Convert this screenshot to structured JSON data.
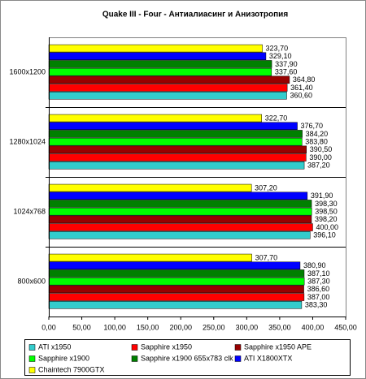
{
  "chart_data": {
    "type": "hbar",
    "title": "Quake III - Four - Антиалиасинг и Анизотропия",
    "categories": [
      "1600x1200",
      "1280x1024",
      "1024x768",
      "800x600"
    ],
    "xlim": [
      0,
      450
    ],
    "xticks": [
      {
        "value": 0,
        "label": "0,00"
      },
      {
        "value": 50,
        "label": "50,00"
      },
      {
        "value": 100,
        "label": "100,00"
      },
      {
        "value": 150,
        "label": "150,00"
      },
      {
        "value": 200,
        "label": "200,00"
      },
      {
        "value": 250,
        "label": "250,00"
      },
      {
        "value": 300,
        "label": "300,00"
      },
      {
        "value": 350,
        "label": "350,00"
      },
      {
        "value": 400,
        "label": "400,00"
      },
      {
        "value": 450,
        "label": "450,00"
      }
    ],
    "series": [
      {
        "name": "ATI x1950",
        "color": "#33CCCC",
        "values": [
          360.6,
          387.2,
          396.1,
          383.3
        ],
        "value_labels": [
          "360,60",
          "387,20",
          "396,10",
          "383,30"
        ]
      },
      {
        "name": "Sapphire x1950",
        "color": "#FF0000",
        "values": [
          361.4,
          390.0,
          400.0,
          387.0
        ],
        "value_labels": [
          "361,40",
          "390,00",
          "400,00",
          "387,00"
        ]
      },
      {
        "name": "Sapphire x1950 APE",
        "color": "#990000",
        "values": [
          364.8,
          390.5,
          398.2,
          386.6
        ],
        "value_labels": [
          "364,80",
          "390,50",
          "398,20",
          "386,60"
        ]
      },
      {
        "name": "Sapphire x1900",
        "color": "#00FF00",
        "values": [
          337.6,
          383.8,
          398.5,
          387.3
        ],
        "value_labels": [
          "337,60",
          "383,80",
          "398,50",
          "387,30"
        ]
      },
      {
        "name": "Sapphire x1900 655x783 clk",
        "color": "#008000",
        "values": [
          337.9,
          384.2,
          398.3,
          387.1
        ],
        "value_labels": [
          "337,90",
          "384,20",
          "398,30",
          "387,10"
        ]
      },
      {
        "name": "ATI X1800XTX",
        "color": "#0000FF",
        "values": [
          329.1,
          376.7,
          391.9,
          380.9
        ],
        "value_labels": [
          "329,10",
          "376,70",
          "391,90",
          "380,90"
        ]
      },
      {
        "name": "Chaintech 7900GTX",
        "color": "#FFFF00",
        "values": [
          323.7,
          322.7,
          307.2,
          307.7
        ],
        "value_labels": [
          "323,70",
          "322,70",
          "307,20",
          "307,70"
        ]
      }
    ]
  }
}
